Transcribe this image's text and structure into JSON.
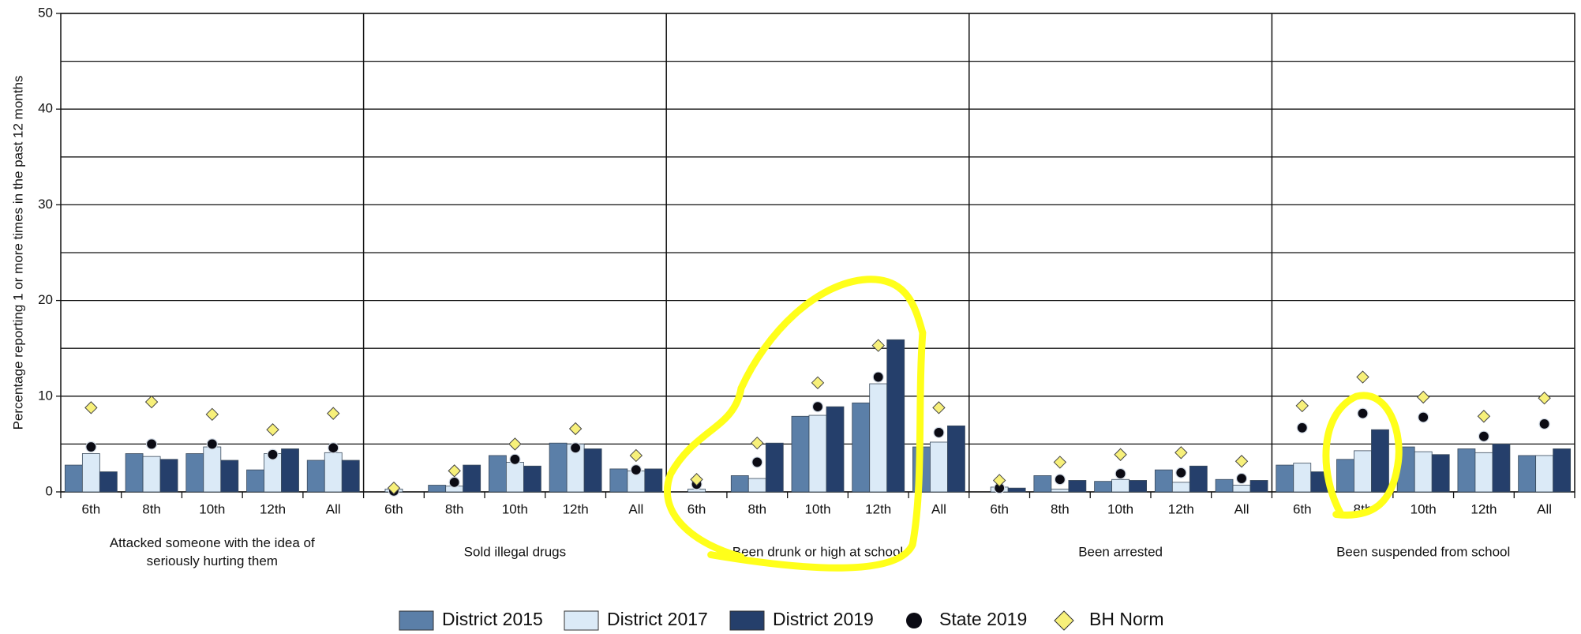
{
  "chart_data": {
    "type": "bar",
    "y_label": "Percentage reporting 1 or more times in the past 12 months",
    "groups": [
      [
        "Attacked someone with the idea of",
        "seriously hurting them"
      ],
      [
        "Sold illegal drugs"
      ],
      [
        "Been drunk or high at school"
      ],
      [
        "Been arrested"
      ],
      [
        "Been suspended from school"
      ]
    ],
    "categories": [
      "6th",
      "8th",
      "10th",
      "12th",
      "All",
      "6th",
      "8th",
      "10th",
      "12th",
      "All",
      "6th",
      "8th",
      "10th",
      "12th",
      "All",
      "6th",
      "8th",
      "10th",
      "12th",
      "All",
      "6th",
      "8th",
      "10th",
      "12th",
      "All"
    ],
    "series": [
      {
        "name": "District 2015",
        "kind": "bar",
        "color": "#5b7fa8",
        "values": [
          2.8,
          4.0,
          4.0,
          2.3,
          3.3,
          0,
          0.7,
          3.8,
          5.1,
          2.4,
          0,
          1.7,
          7.9,
          9.3,
          4.7,
          0,
          1.7,
          1.1,
          2.3,
          1.3,
          2.8,
          3.4,
          4.7,
          4.5,
          3.8
        ]
      },
      {
        "name": "District 2017",
        "kind": "bar",
        "color": "#dbeaf7",
        "values": [
          4.0,
          3.7,
          4.7,
          4.0,
          4.1,
          0.3,
          0.6,
          3.1,
          5.0,
          2.2,
          0.3,
          1.4,
          8.0,
          11.3,
          5.2,
          0.5,
          0.3,
          1.3,
          1.0,
          0.7,
          3.0,
          4.3,
          4.2,
          4.1,
          3.8
        ]
      },
      {
        "name": "District 2019",
        "kind": "bar",
        "color": "#253f6b",
        "values": [
          2.1,
          3.4,
          3.3,
          4.5,
          3.3,
          0,
          2.8,
          2.7,
          4.5,
          2.4,
          0,
          5.1,
          8.9,
          15.9,
          6.9,
          0.4,
          1.2,
          1.2,
          2.7,
          1.2,
          2.1,
          6.5,
          3.9,
          5.0,
          4.5
        ]
      },
      {
        "name": "State 2019",
        "kind": "circle",
        "color": "#0b0b14",
        "values": [
          4.7,
          5.0,
          5.0,
          3.9,
          4.6,
          0.1,
          1.0,
          3.4,
          4.6,
          2.3,
          0.8,
          3.1,
          8.9,
          12.0,
          6.2,
          0.4,
          1.3,
          1.9,
          2.0,
          1.4,
          6.7,
          8.2,
          7.8,
          5.8,
          7.1
        ]
      },
      {
        "name": "BH Norm",
        "kind": "diamond",
        "color": "#f7f07a",
        "values": [
          8.8,
          9.4,
          8.1,
          6.5,
          8.2,
          0.4,
          2.2,
          5.0,
          6.6,
          3.8,
          1.3,
          5.1,
          11.4,
          15.3,
          8.8,
          1.2,
          3.1,
          3.9,
          4.1,
          3.2,
          9.0,
          12.0,
          9.9,
          7.9,
          9.8
        ]
      }
    ],
    "ylim": [
      0,
      50
    ],
    "yticks": [
      0,
      10,
      20,
      30,
      40,
      50
    ],
    "yminor": [
      5,
      15,
      25,
      35,
      45
    ],
    "grid": true
  }
}
